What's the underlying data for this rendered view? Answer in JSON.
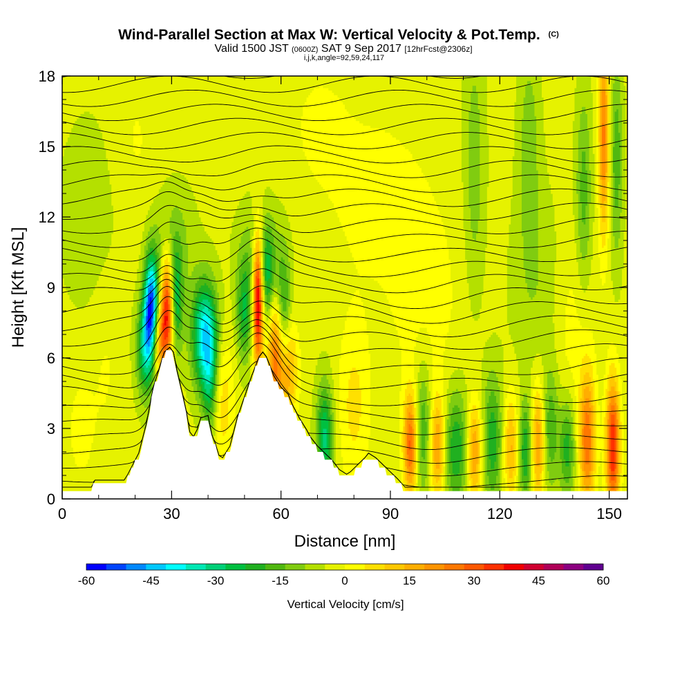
{
  "chart_data": {
    "type": "heatmap",
    "title": "Wind-Parallel Section at Max W: Vertical Velocity & Pot.Temp.",
    "title_mark": "(C)",
    "subtitle_parts": [
      "Valid 1500 JST",
      "(0600Z)",
      "SAT 9 Sep 2017",
      "[12hrFcst@2306z]"
    ],
    "subtitle2": "i,j,k,angle=92,59,24,117",
    "xlabel": "Distance [nm]",
    "ylabel": "Height [Kft MSL]",
    "xlim": [
      0,
      155
    ],
    "ylim": [
      0,
      18
    ],
    "x_ticks": [
      0,
      30,
      60,
      90,
      120,
      150
    ],
    "x_tick_labels": [
      "0",
      "30",
      "60",
      "90",
      "120",
      "150"
    ],
    "y_ticks": [
      0,
      3,
      6,
      9,
      12,
      15,
      18
    ],
    "y_tick_labels": [
      "0",
      "3",
      "6",
      "9",
      "12",
      "15",
      "18"
    ],
    "colorbar": {
      "label": "Vertical Velocity [cm/s]",
      "min": -60,
      "max": 60,
      "step": 5,
      "tick_values": [
        -60,
        -45,
        -30,
        -15,
        0,
        15,
        30,
        45,
        60
      ],
      "tick_labels": [
        "-60",
        "-45",
        "-30",
        "-15",
        "0",
        "15",
        "30",
        "45",
        "60"
      ],
      "colors": [
        "#0000ff",
        "#0044ff",
        "#0088ff",
        "#00c8ff",
        "#00ffff",
        "#00e8b4",
        "#00d078",
        "#00c040",
        "#20b020",
        "#50b810",
        "#80cc10",
        "#b4e000",
        "#e6f200",
        "#ffff00",
        "#ffe000",
        "#ffc800",
        "#ffae00",
        "#ff9400",
        "#ff7800",
        "#ff5800",
        "#ff3000",
        "#f00000",
        "#d00030",
        "#b00058",
        "#8c0080",
        "#600090"
      ]
    },
    "terrain_profile": [
      [
        0,
        0.35
      ],
      [
        8,
        0.35
      ],
      [
        9,
        0.65
      ],
      [
        17,
        0.65
      ],
      [
        18,
        0.9
      ],
      [
        21,
        1.8
      ],
      [
        23,
        3.0
      ],
      [
        25,
        4.6
      ],
      [
        27,
        5.6
      ],
      [
        28,
        6.1
      ],
      [
        29.5,
        6.3
      ],
      [
        30.5,
        6.1
      ],
      [
        31.5,
        5.3
      ],
      [
        33,
        4.3
      ],
      [
        34,
        3.6
      ],
      [
        35,
        2.7
      ],
      [
        36,
        2.5
      ],
      [
        37,
        2.8
      ],
      [
        38,
        3.3
      ],
      [
        40,
        3.4
      ],
      [
        41,
        2.6
      ],
      [
        42,
        2.2
      ],
      [
        43,
        1.7
      ],
      [
        44,
        1.6
      ],
      [
        46,
        2.1
      ],
      [
        48,
        3.3
      ],
      [
        50,
        4.2
      ],
      [
        52,
        5.1
      ],
      [
        54,
        5.9
      ],
      [
        55,
        6.1
      ],
      [
        56,
        5.9
      ],
      [
        58,
        5.1
      ],
      [
        60,
        4.6
      ],
      [
        62,
        4.3
      ],
      [
        63,
        3.9
      ],
      [
        65,
        3.3
      ],
      [
        67,
        2.8
      ],
      [
        68,
        2.5
      ],
      [
        70,
        2.1
      ],
      [
        72,
        1.8
      ],
      [
        74,
        1.5
      ],
      [
        76,
        1.1
      ],
      [
        77,
        1.0
      ],
      [
        78,
        0.9
      ],
      [
        79,
        1.0
      ],
      [
        81,
        1.3
      ],
      [
        83,
        1.6
      ],
      [
        84,
        1.8
      ],
      [
        86,
        1.6
      ],
      [
        88,
        1.3
      ],
      [
        90,
        1.0
      ],
      [
        92,
        0.7
      ],
      [
        94,
        0.35
      ],
      [
        155,
        0.35
      ]
    ],
    "velocity_features": [
      {
        "x": 24.5,
        "y": 8.2,
        "sx": 1.4,
        "sy": 1.5,
        "w": -55
      },
      {
        "x": 23.0,
        "y": 6.4,
        "sx": 1.8,
        "sy": 1.4,
        "w": -30
      },
      {
        "x": 29.0,
        "y": 8.2,
        "sx": 1.3,
        "sy": 1.6,
        "w": 48
      },
      {
        "x": 26.5,
        "y": 6.8,
        "sx": 1.6,
        "sy": 1.2,
        "w": 28
      },
      {
        "x": 31.0,
        "y": 8.4,
        "sx": 1.4,
        "sy": 1.5,
        "w": -30
      },
      {
        "x": 39.0,
        "y": 7.0,
        "sx": 2.5,
        "sy": 1.6,
        "w": -38
      },
      {
        "x": 40.5,
        "y": 5.0,
        "sx": 1.5,
        "sy": 1.8,
        "w": -20
      },
      {
        "x": 44.0,
        "y": 4.2,
        "sx": 2.2,
        "sy": 2.0,
        "w": 12
      },
      {
        "x": 50.0,
        "y": 8.0,
        "sx": 1.6,
        "sy": 1.5,
        "w": -22
      },
      {
        "x": 53.7,
        "y": 8.5,
        "sx": 1.0,
        "sy": 2.0,
        "w": 55
      },
      {
        "x": 56.5,
        "y": 9.2,
        "sx": 1.5,
        "sy": 1.5,
        "w": -22
      },
      {
        "x": 58.5,
        "y": 6.3,
        "sx": 1.6,
        "sy": 2.0,
        "w": 34
      },
      {
        "x": 60.5,
        "y": 8.0,
        "sx": 1.5,
        "sy": 1.8,
        "w": -24
      },
      {
        "x": 62.0,
        "y": 5.5,
        "sx": 1.8,
        "sy": 1.5,
        "w": 22
      },
      {
        "x": 72.0,
        "y": 2.6,
        "sx": 1.6,
        "sy": 1.6,
        "w": -28
      },
      {
        "x": 80.0,
        "y": 4.0,
        "sx": 3.0,
        "sy": 2.5,
        "w": 10
      },
      {
        "x": 95.5,
        "y": 2.3,
        "sx": 1.3,
        "sy": 1.5,
        "w": 34
      },
      {
        "x": 99.0,
        "y": 3.0,
        "sx": 1.6,
        "sy": 2.0,
        "w": -18
      },
      {
        "x": 103.0,
        "y": 2.2,
        "sx": 1.5,
        "sy": 1.5,
        "w": 25
      },
      {
        "x": 108.0,
        "y": 2.2,
        "sx": 2.5,
        "sy": 1.8,
        "w": -22
      },
      {
        "x": 113.0,
        "y": 2.0,
        "sx": 1.5,
        "sy": 1.5,
        "w": 26
      },
      {
        "x": 118.0,
        "y": 2.5,
        "sx": 2.0,
        "sy": 2.0,
        "w": -20
      },
      {
        "x": 123.0,
        "y": 2.2,
        "sx": 1.5,
        "sy": 1.6,
        "w": 20
      },
      {
        "x": 127.0,
        "y": 2.0,
        "sx": 1.3,
        "sy": 1.5,
        "w": -22
      },
      {
        "x": 130.5,
        "y": 2.4,
        "sx": 1.3,
        "sy": 1.8,
        "w": 24
      },
      {
        "x": 134.0,
        "y": 3.0,
        "sx": 1.6,
        "sy": 1.8,
        "w": -16
      },
      {
        "x": 138.5,
        "y": 2.2,
        "sx": 1.5,
        "sy": 1.5,
        "w": -20
      },
      {
        "x": 144.0,
        "y": 2.5,
        "sx": 1.5,
        "sy": 2.0,
        "w": 32
      },
      {
        "x": 151.0,
        "y": 2.2,
        "sx": 1.3,
        "sy": 2.0,
        "w": 44
      },
      {
        "x": 148.5,
        "y": 15.5,
        "sx": 1.0,
        "sy": 3.0,
        "w": 30
      },
      {
        "x": 152.0,
        "y": 14.5,
        "sx": 1.2,
        "sy": 3.0,
        "w": -15
      },
      {
        "x": 143.0,
        "y": 13.0,
        "sx": 1.5,
        "sy": 3.0,
        "w": -14
      },
      {
        "x": 113.0,
        "y": 14.0,
        "sx": 2.0,
        "sy": 4.0,
        "w": -10
      },
      {
        "x": 128.0,
        "y": 15.0,
        "sx": 2.0,
        "sy": 3.0,
        "w": -10
      },
      {
        "x": 30.0,
        "y": 11.0,
        "sx": 4.0,
        "sy": 1.6,
        "w": -10
      },
      {
        "x": 54.0,
        "y": 10.6,
        "sx": 4.0,
        "sy": 1.4,
        "w": -10
      },
      {
        "x": 12.0,
        "y": 6.0,
        "sx": 3.0,
        "sy": 3.0,
        "w": 4
      },
      {
        "x": 5.0,
        "y": 3.0,
        "sx": 3.0,
        "sy": 2.0,
        "w": 5
      },
      {
        "x": 8.0,
        "y": 12.0,
        "sx": 6.0,
        "sy": 3.0,
        "w": -5
      },
      {
        "x": 85.0,
        "y": 13.0,
        "sx": 10.0,
        "sy": 3.0,
        "w": 5
      },
      {
        "x": 100.0,
        "y": 8.0,
        "sx": 8.0,
        "sy": 4.0,
        "w": 5
      },
      {
        "x": 130.0,
        "y": 9.0,
        "sx": 5.0,
        "sy": 3.0,
        "w": -6
      },
      {
        "x": 140.0,
        "y": 7.0,
        "sx": 4.0,
        "sy": 3.0,
        "w": 6
      },
      {
        "x": 70.0,
        "y": 16.0,
        "sx": 6.0,
        "sy": 2.0,
        "w": 4
      },
      {
        "x": 20.0,
        "y": 15.0,
        "sx": 5.0,
        "sy": 3.0,
        "w": 4
      }
    ]
  }
}
